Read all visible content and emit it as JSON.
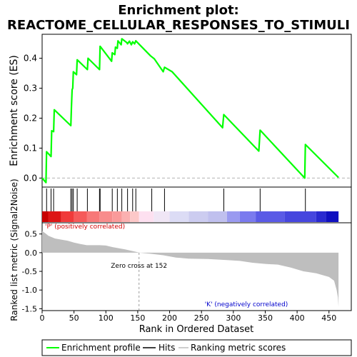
{
  "chart_data": {
    "type": "line",
    "title_line1": "Enrichment plot:",
    "title_line2": "REACTOME_CELLULAR_RESPONSES_TO_STIMULI",
    "es_panel": {
      "ylabel": "Enrichment score (ES)",
      "ylim": [
        -0.03,
        0.48
      ],
      "yticks": [
        0.0,
        0.1,
        0.2,
        0.3,
        0.4
      ],
      "ytick_labels": [
        "0.0",
        "0.1",
        "0.2",
        "0.3",
        "0.4"
      ],
      "series_name": "Enrichment profile",
      "color": "#00ff00",
      "points": [
        [
          0,
          0.0
        ],
        [
          6,
          -0.015
        ],
        [
          7,
          0.088
        ],
        [
          14,
          0.072
        ],
        [
          15,
          0.158
        ],
        [
          18,
          0.155
        ],
        [
          19,
          0.228
        ],
        [
          45,
          0.175
        ],
        [
          46,
          0.24
        ],
        [
          47,
          0.295
        ],
        [
          48,
          0.3
        ],
        [
          49,
          0.355
        ],
        [
          54,
          0.345
        ],
        [
          55,
          0.395
        ],
        [
          71,
          0.362
        ],
        [
          72,
          0.4
        ],
        [
          90,
          0.362
        ],
        [
          91,
          0.44
        ],
        [
          109,
          0.39
        ],
        [
          110,
          0.418
        ],
        [
          114,
          0.412
        ],
        [
          115,
          0.437
        ],
        [
          118,
          0.433
        ],
        [
          119,
          0.458
        ],
        [
          124,
          0.445
        ],
        [
          125,
          0.465
        ],
        [
          133,
          0.452
        ],
        [
          134,
          0.448
        ],
        [
          137,
          0.457
        ],
        [
          140,
          0.445
        ],
        [
          142,
          0.455
        ],
        [
          145,
          0.448
        ],
        [
          147,
          0.458
        ],
        [
          170,
          0.408
        ],
        [
          176,
          0.398
        ],
        [
          190,
          0.355
        ],
        [
          192,
          0.37
        ],
        [
          204,
          0.355
        ],
        [
          283,
          0.168
        ],
        [
          285,
          0.212
        ],
        [
          340,
          0.09
        ],
        [
          342,
          0.16
        ],
        [
          412,
          0.0
        ],
        [
          413,
          0.112
        ],
        [
          465,
          0.002
        ]
      ]
    },
    "hits": [
      7,
      14,
      18,
      45,
      47,
      49,
      55,
      71,
      90,
      91,
      110,
      118,
      125,
      134,
      142,
      147,
      172,
      192,
      285,
      342,
      413
    ],
    "metric_panel": {
      "ylabel": "Ranked list metric (Signal2Noise)",
      "ylim": [
        -1.55,
        0.8
      ],
      "yticks": [
        0.5,
        0.0,
        -0.5,
        -1.0,
        -1.5
      ],
      "ytick_labels": [
        "0.5",
        "0.0",
        "-0.5",
        "-1.0",
        "-1.5"
      ],
      "profile": [
        [
          0,
          0.58
        ],
        [
          5,
          0.52
        ],
        [
          10,
          0.45
        ],
        [
          20,
          0.38
        ],
        [
          30,
          0.35
        ],
        [
          40,
          0.32
        ],
        [
          50,
          0.27
        ],
        [
          60,
          0.23
        ],
        [
          70,
          0.2
        ],
        [
          90,
          0.2
        ],
        [
          100,
          0.19
        ],
        [
          110,
          0.15
        ],
        [
          120,
          0.12
        ],
        [
          130,
          0.09
        ],
        [
          140,
          0.05
        ],
        [
          150,
          0.01
        ],
        [
          152,
          0.0
        ],
        [
          170,
          -0.03
        ],
        [
          190,
          -0.07
        ],
        [
          210,
          -0.13
        ],
        [
          230,
          -0.16
        ],
        [
          260,
          -0.17
        ],
        [
          290,
          -0.2
        ],
        [
          310,
          -0.22
        ],
        [
          330,
          -0.27
        ],
        [
          350,
          -0.3
        ],
        [
          370,
          -0.32
        ],
        [
          390,
          -0.4
        ],
        [
          410,
          -0.5
        ],
        [
          430,
          -0.55
        ],
        [
          450,
          -0.65
        ],
        [
          458,
          -0.75
        ],
        [
          462,
          -1.0
        ],
        [
          464,
          -1.2
        ],
        [
          465,
          -1.45
        ]
      ],
      "zero_cross_label": "Zero cross at 152",
      "zero_cross": 152,
      "pos_label": "'P' (positively correlated)",
      "neg_label": "'K' (negatively correlated)",
      "pos_color": "#e00000",
      "neg_color": "#0000cc"
    },
    "xlabel": "Rank in Ordered Dataset",
    "xlim": [
      0,
      485
    ],
    "xticks": [
      0,
      50,
      100,
      150,
      200,
      250,
      300,
      350,
      400,
      450
    ],
    "xtick_labels": [
      "0",
      "50",
      "100",
      "150",
      "200",
      "250",
      "300",
      "350",
      "400",
      "450"
    ],
    "n_genes": 465,
    "heat_blocks": [
      [
        0,
        10,
        "#c80000"
      ],
      [
        10,
        30,
        "#dd1515"
      ],
      [
        30,
        50,
        "#f03a3a"
      ],
      [
        50,
        70,
        "#f55a5a"
      ],
      [
        70,
        90,
        "#f77878"
      ],
      [
        90,
        110,
        "#f88c8c"
      ],
      [
        110,
        125,
        "#fa9a9a"
      ],
      [
        125,
        138,
        "#fbb0b0"
      ],
      [
        138,
        152,
        "#fcc8c8"
      ],
      [
        152,
        175,
        "#fde0f0"
      ],
      [
        175,
        200,
        "#f0e6f5"
      ],
      [
        200,
        230,
        "#dcdcf5"
      ],
      [
        230,
        260,
        "#ccccf0"
      ],
      [
        260,
        290,
        "#c0c0ee"
      ],
      [
        290,
        310,
        "#9a9af0"
      ],
      [
        310,
        335,
        "#7a7aee"
      ],
      [
        335,
        380,
        "#5a5ae6"
      ],
      [
        380,
        430,
        "#4646de"
      ],
      [
        430,
        445,
        "#2a2ad0"
      ],
      [
        445,
        465,
        "#1010c0"
      ]
    ],
    "legend": [
      {
        "label": "Enrichment profile",
        "color": "#00ff00"
      },
      {
        "label": "Hits",
        "color": "#000000"
      },
      {
        "label": "Ranking metric scores",
        "color": "#bebebe"
      }
    ]
  }
}
